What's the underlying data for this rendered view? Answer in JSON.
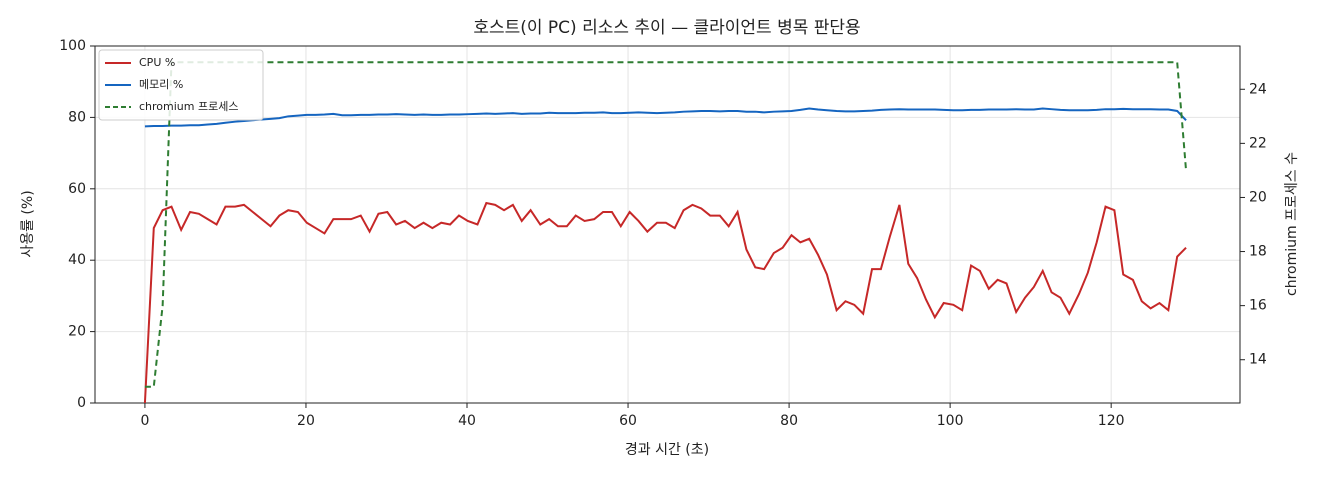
{
  "chart_data": {
    "type": "line",
    "title": "호스트(이 PC) 리소스 추이 — 클라이언트 병목 판단용",
    "xlabel": "경과 시간 (초)",
    "ylabel": "사용률 (%)",
    "y2label": "chromium 프로세스 수",
    "x": [
      0,
      1.1,
      2.2,
      3.3,
      4.5,
      5.6,
      6.7,
      7.8,
      8.9,
      10.0,
      11.2,
      12.3,
      13.4,
      14.5,
      15.6,
      16.7,
      17.8,
      19.0,
      20.1,
      21.2,
      22.3,
      23.4,
      24.5,
      25.6,
      26.8,
      27.9,
      29.0,
      30.1,
      31.2,
      32.3,
      33.5,
      34.6,
      35.7,
      36.8,
      37.9,
      39.0,
      40.1,
      41.3,
      42.4,
      43.5,
      44.6,
      45.7,
      46.8,
      47.9,
      49.1,
      50.2,
      51.3,
      52.4,
      53.5,
      54.6,
      55.8,
      56.9,
      58.0,
      59.1,
      60.2,
      61.3,
      62.4,
      63.6,
      64.7,
      65.8,
      66.9,
      68.0,
      69.1,
      70.2,
      71.4,
      72.5,
      73.6,
      74.7,
      75.8,
      76.9,
      78.1,
      79.2,
      80.3,
      81.4,
      82.5,
      83.6,
      84.7,
      85.9,
      87.0,
      88.1,
      89.2,
      90.3,
      91.4,
      92.5,
      93.7,
      94.8,
      95.9,
      97.0,
      98.1,
      99.2,
      100.4,
      101.5,
      102.6,
      103.7,
      104.8,
      105.9,
      107.0,
      108.2,
      109.3,
      110.4,
      111.5,
      112.6,
      113.7,
      114.8,
      116.0,
      117.1,
      118.2,
      119.3,
      120.4,
      121.5,
      122.7,
      123.8,
      124.9,
      126.0,
      127.1,
      128.2,
      129.3
    ],
    "series": [
      {
        "name": "CPU %",
        "color": "#c62828",
        "linestyle": "solid",
        "values": [
          0,
          49,
          54,
          55,
          48.5,
          53.5,
          53,
          51.5,
          50,
          55,
          55,
          55.5,
          53.5,
          51.5,
          49.5,
          52.5,
          54,
          53.5,
          50.5,
          49,
          47.5,
          51.5,
          51.5,
          51.5,
          52.5,
          48,
          53,
          53.5,
          50,
          51,
          49,
          50.5,
          49,
          50.5,
          50,
          52.5,
          51,
          50,
          56,
          55.5,
          54,
          55.5,
          51,
          54,
          50,
          51.5,
          49.5,
          49.5,
          52.5,
          51,
          51.5,
          53.5,
          53.5,
          49.5,
          53.5,
          51,
          48,
          50.5,
          50.5,
          49,
          54,
          55.5,
          54.5,
          52.5,
          52.5,
          49.5,
          53.5,
          43,
          38,
          37.5,
          42,
          43.5,
          47,
          45,
          46,
          41.5,
          36,
          26,
          28.5,
          27.5,
          25,
          37.5,
          37.5,
          46.5,
          55.5,
          39,
          35,
          29,
          24,
          28,
          27.5,
          26,
          38.5,
          37,
          32,
          34.5,
          33.5,
          25.5,
          29.5,
          32.5,
          37,
          31,
          29.5,
          25,
          30.5,
          36.5,
          45,
          55,
          54,
          36,
          34.5,
          28.5,
          26.5,
          28,
          26,
          41,
          43.5
        ]
      },
      {
        "name": "메모리 %",
        "color": "#1565c0",
        "linestyle": "solid",
        "values": [
          77.5,
          77.6,
          77.6,
          77.7,
          77.7,
          77.8,
          77.8,
          78,
          78.2,
          78.5,
          78.8,
          79,
          79.2,
          79.4,
          79.6,
          79.8,
          80.3,
          80.5,
          80.7,
          80.7,
          80.8,
          81,
          80.6,
          80.6,
          80.7,
          80.7,
          80.8,
          80.8,
          80.9,
          80.8,
          80.7,
          80.8,
          80.7,
          80.7,
          80.8,
          80.8,
          80.9,
          81,
          81.1,
          81,
          81.1,
          81.2,
          81,
          81.1,
          81.1,
          81.3,
          81.2,
          81.2,
          81.2,
          81.3,
          81.3,
          81.4,
          81.2,
          81.2,
          81.3,
          81.4,
          81.3,
          81.2,
          81.3,
          81.4,
          81.6,
          81.7,
          81.8,
          81.8,
          81.7,
          81.8,
          81.8,
          81.6,
          81.6,
          81.4,
          81.6,
          81.7,
          81.8,
          82.1,
          82.5,
          82.2,
          82,
          81.8,
          81.7,
          81.7,
          81.8,
          81.9,
          82.1,
          82.2,
          82.3,
          82.2,
          82.2,
          82.2,
          82.2,
          82.1,
          82,
          82,
          82.1,
          82.1,
          82.2,
          82.2,
          82.2,
          82.3,
          82.2,
          82.2,
          82.5,
          82.3,
          82.1,
          82,
          82,
          82,
          82.1,
          82.3,
          82.3,
          82.4,
          82.3,
          82.3,
          82.3,
          82.2,
          82.2,
          81.8,
          79.2
        ]
      },
      {
        "name": "chromium 프로세스",
        "color": "#2e7d32",
        "linestyle": "dashed",
        "axis": "y2",
        "values": [
          13,
          13,
          16,
          25,
          25,
          25,
          25,
          25,
          25,
          25,
          25,
          25,
          25,
          25,
          25,
          25,
          25,
          25,
          25,
          25,
          25,
          25,
          25,
          25,
          25,
          25,
          25,
          25,
          25,
          25,
          25,
          25,
          25,
          25,
          25,
          25,
          25,
          25,
          25,
          25,
          25,
          25,
          25,
          25,
          25,
          25,
          25,
          25,
          25,
          25,
          25,
          25,
          25,
          25,
          25,
          25,
          25,
          25,
          25,
          25,
          25,
          25,
          25,
          25,
          25,
          25,
          25,
          25,
          25,
          25,
          25,
          25,
          25,
          25,
          25,
          25,
          25,
          25,
          25,
          25,
          25,
          25,
          25,
          25,
          25,
          25,
          25,
          25,
          25,
          25,
          25,
          25,
          25,
          25,
          25,
          25,
          25,
          25,
          25,
          25,
          25,
          25,
          25,
          25,
          25,
          25,
          25,
          25,
          25,
          25,
          25,
          25,
          25,
          25,
          25,
          25,
          21
        ]
      }
    ],
    "xlim": [
      -6.2,
      136.0
    ],
    "xticks": [
      0,
      20,
      40,
      60,
      80,
      100,
      120
    ],
    "ylim": [
      0,
      100
    ],
    "yticks": [
      0,
      20,
      40,
      60,
      80,
      100
    ],
    "y2lim": [
      12.4,
      25.6
    ],
    "y2ticks": [
      14,
      16,
      18,
      20,
      22,
      24
    ],
    "grid": true,
    "legend": "upper-left"
  }
}
